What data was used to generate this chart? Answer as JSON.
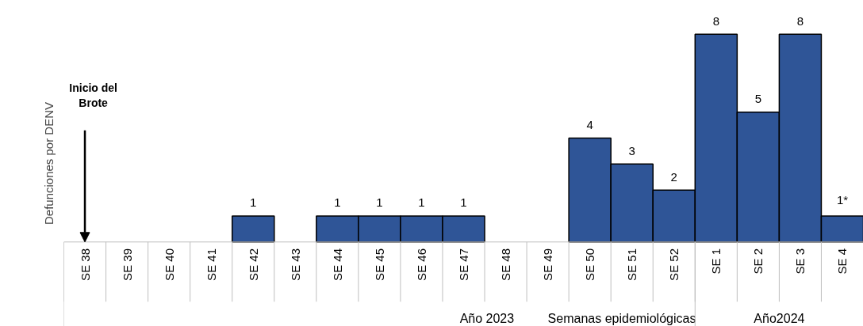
{
  "chart_data": {
    "type": "bar",
    "xlabel": "Semanas epidemiológicas",
    "ylabel": "Defunciones por DENV",
    "categories": [
      "SE 38",
      "SE 39",
      "SE 40",
      "SE 41",
      "SE 42",
      "SE 43",
      "SE 44",
      "SE 45",
      "SE 46",
      "SE 47",
      "SE 48",
      "SE 49",
      "SE 50",
      "SE 51",
      "SE 52",
      "SE 1",
      "SE 2",
      "SE 3",
      "SE 4"
    ],
    "values": [
      0,
      0,
      0,
      0,
      1,
      0,
      1,
      1,
      1,
      1,
      0,
      0,
      4,
      3,
      2,
      8,
      5,
      8,
      1
    ],
    "value_labels": [
      null,
      null,
      null,
      null,
      "1",
      null,
      "1",
      "1",
      "1",
      "1",
      null,
      null,
      "4",
      "3",
      "2",
      "8",
      "5",
      "8",
      "1*"
    ],
    "color": "#2f5597",
    "annotations": [
      "Inicio del\nBrote",
      "Año 2023",
      "Año2024"
    ]
  }
}
